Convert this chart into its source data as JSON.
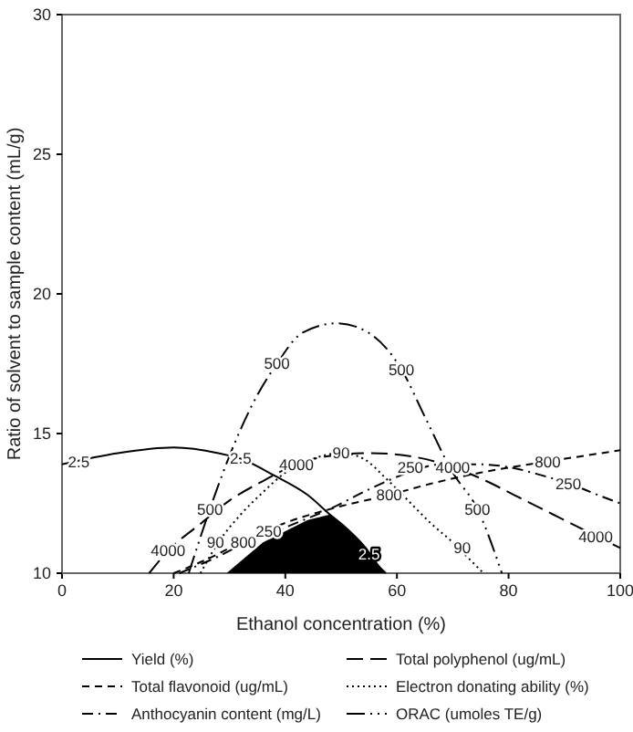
{
  "chart_data": {
    "type": "line",
    "xlabel": "Ethanol concentration (%)",
    "ylabel": "Ratio of solvent to sample content (mL/g)",
    "xlim": [
      0,
      100
    ],
    "xticks": [
      0,
      20,
      40,
      60,
      80,
      100
    ],
    "ylim": [
      10,
      30
    ],
    "yticks": [
      10,
      15,
      20,
      25,
      30
    ],
    "grid": false,
    "legend": "bottom",
    "marker": "none",
    "series": [
      {
        "type": "area",
        "color": "#000000",
        "x": [
          29.5,
          33,
          36,
          40,
          44,
          48,
          51,
          54,
          57,
          58
        ],
        "values": [
          10,
          10.6,
          11.1,
          11.5,
          11.9,
          12.1,
          11.6,
          11.0,
          10.2,
          10
        ]
      },
      {
        "name": "Yield (%)",
        "color": "#000000",
        "line_style": "solid",
        "x": [
          0,
          10,
          20,
          28,
          32,
          38,
          44,
          48,
          51,
          54,
          57,
          58
        ],
        "values": [
          13.9,
          14.3,
          14.5,
          14.3,
          14.1,
          13.5,
          12.8,
          12.1,
          11.6,
          11.0,
          10.2,
          10
        ]
      },
      {
        "name": "Total polyphenol (ug/mL)",
        "color": "#000000",
        "line_style": "dashed",
        "x": [
          15.6,
          19,
          25,
          30,
          36,
          42,
          48,
          55,
          62,
          70,
          76,
          81,
          88,
          95,
          100
        ],
        "values": [
          10,
          10.8,
          11.8,
          12.6,
          13.3,
          13.9,
          14.2,
          14.3,
          14.2,
          13.8,
          13.3,
          12.8,
          12.1,
          11.4,
          10.9
        ]
      },
      {
        "name": "Total flavonoid (ug/mL)",
        "color": "#000000",
        "line_style": "dashed",
        "x": [
          20,
          26,
          32,
          40,
          50,
          58.6,
          66,
          75,
          87,
          100
        ],
        "values": [
          10,
          10.5,
          11.1,
          11.8,
          12.4,
          12.8,
          13.2,
          13.6,
          14.0,
          14.4
        ]
      },
      {
        "name": "Electron donating ability (%)",
        "color": "#000000",
        "line_style": "dotted",
        "x": [
          24.8,
          28,
          32,
          36,
          40,
          45,
          50,
          54,
          58,
          62,
          66,
          70,
          73,
          75.5
        ],
        "values": [
          10,
          11.1,
          12.1,
          12.9,
          13.6,
          14.1,
          14.3,
          14.1,
          13.4,
          12.6,
          11.8,
          11.1,
          10.5,
          10
        ]
      },
      {
        "name": "Anthocyanin content (mg/L)",
        "color": "#000000",
        "line_style": "dashed",
        "x": [
          21,
          28,
          33,
          37,
          42,
          48,
          55,
          62,
          68,
          74,
          80,
          86,
          91,
          96,
          100
        ],
        "values": [
          10,
          10.6,
          11.1,
          11.4,
          11.8,
          12.3,
          13.0,
          13.6,
          13.9,
          13.9,
          13.8,
          13.5,
          13.2,
          12.8,
          12.5
        ]
      },
      {
        "name": "ORAC (umoles TE/g)",
        "color": "#000000",
        "line_style": "dashed",
        "x": [
          22.7,
          26.5,
          30,
          34,
          38.5,
          43,
          49.3,
          55,
          60.8,
          65,
          70,
          74.4,
          78.8
        ],
        "values": [
          10,
          12.3,
          14.2,
          16.0,
          17.5,
          18.6,
          18.95,
          18.6,
          17.3,
          15.6,
          13.6,
          12.3,
          10
        ]
      }
    ],
    "annotations": [
      {
        "text": "2.5",
        "x": 3,
        "y": 14.0
      },
      {
        "text": "2.5",
        "x": 32,
        "y": 14.1
      },
      {
        "text": "2.5",
        "x": 55,
        "y": 10.7
      },
      {
        "text": "4000",
        "x": 19,
        "y": 10.8
      },
      {
        "text": "4000",
        "x": 42,
        "y": 13.9
      },
      {
        "text": "4000",
        "x": 70,
        "y": 13.8
      },
      {
        "text": "4000",
        "x": 95.6,
        "y": 11.3
      },
      {
        "text": "800",
        "x": 32.5,
        "y": 11.1
      },
      {
        "text": "800",
        "x": 58.6,
        "y": 12.8
      },
      {
        "text": "800",
        "x": 87,
        "y": 14.0
      },
      {
        "text": "90",
        "x": 27.5,
        "y": 11.1
      },
      {
        "text": "90",
        "x": 50,
        "y": 14.3
      },
      {
        "text": "90",
        "x": 71.7,
        "y": 10.9
      },
      {
        "text": "250",
        "x": 37,
        "y": 11.5
      },
      {
        "text": "250",
        "x": 62.4,
        "y": 13.8
      },
      {
        "text": "250",
        "x": 90.7,
        "y": 13.2
      },
      {
        "text": "500",
        "x": 26.5,
        "y": 12.3
      },
      {
        "text": "500",
        "x": 38.5,
        "y": 17.5
      },
      {
        "text": "500",
        "x": 60.8,
        "y": 17.3
      },
      {
        "text": "500",
        "x": 74.4,
        "y": 12.3
      }
    ]
  }
}
